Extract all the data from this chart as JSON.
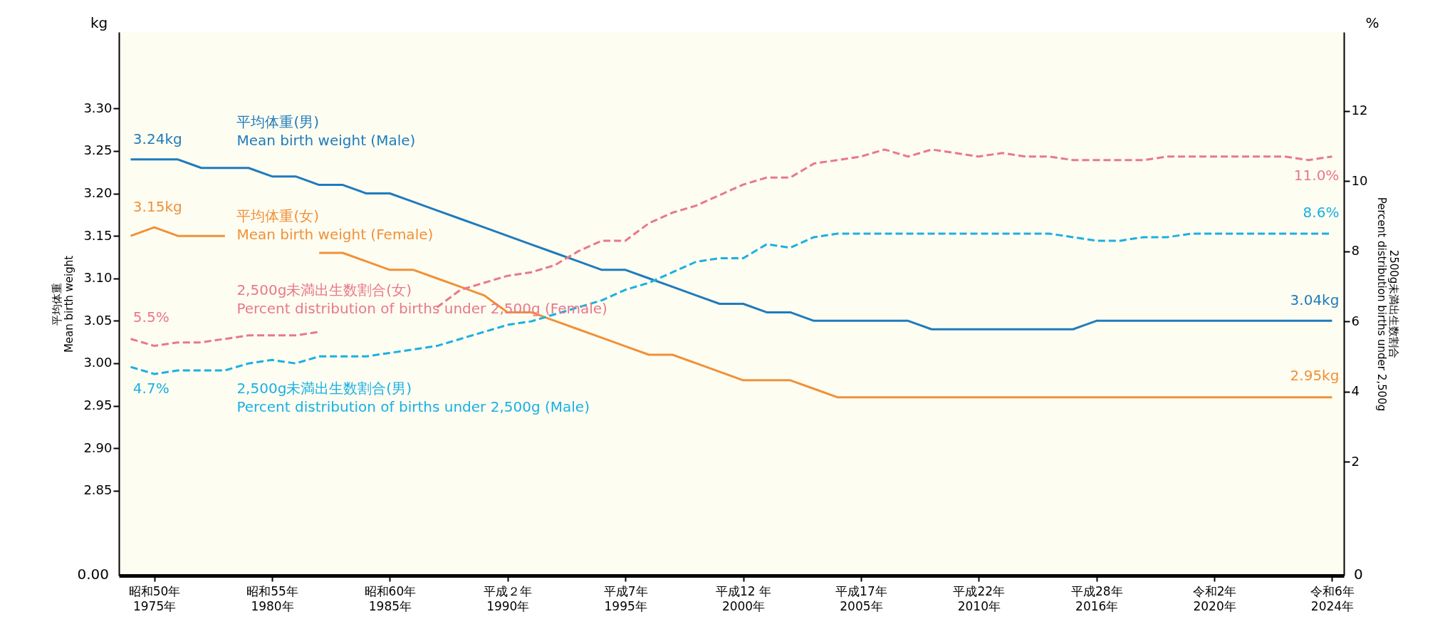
{
  "chart_data": {
    "type": "line",
    "categories": [
      null,
      "昭和50年\n1975年",
      null,
      null,
      null,
      null,
      "昭和55年\n1980年",
      null,
      null,
      null,
      null,
      "昭和60年\n1985年",
      null,
      null,
      null,
      null,
      "平成２年\n1990年",
      null,
      null,
      null,
      null,
      "平成7年\n1995年",
      null,
      null,
      null,
      null,
      "平成12 年\n2000年",
      null,
      null,
      null,
      null,
      "平成17年\n2005年",
      null,
      null,
      null,
      null,
      "平成22年\n2010年",
      null,
      null,
      null,
      null,
      "平成28年\n2016年",
      null,
      null,
      null,
      null,
      "令和2年\n2020年",
      null,
      null,
      null,
      null,
      "令和6年\n2024年"
    ],
    "ylabel": "平均体重\nMean birth weight",
    "y2label": "2500g未満出生数割合\nPercent distribution births under 2,500g",
    "ylim": [
      2.75,
      3.39
    ],
    "yticks": [
      2.85,
      {
        "value": 2.9,
        "label": "2.90"
      },
      2.95,
      {
        "value": 3.0,
        "label": "3.00"
      },
      3.05,
      {
        "value": 3.1,
        "label": "3.10"
      },
      3.15,
      {
        "value": 3.2,
        "label": "3.20"
      },
      3.25,
      {
        "value": 3.3,
        "label": "3.30"
      }
    ],
    "y2lim": [
      -1.25,
      14.25
    ],
    "y2ticks": [
      2,
      4,
      6,
      8,
      10,
      12
    ],
    "grid": false,
    "marker": "none",
    "series": [
      {
        "name": "平均体重(男)\nMean birth weight (Male)",
        "color": "#1f7bbd",
        "line_style": "solid",
        "values": [
          3.24,
          3.24,
          3.24,
          3.23,
          3.23,
          3.23,
          3.22,
          3.22,
          3.21,
          3.21,
          3.2,
          3.2,
          3.19,
          3.18,
          3.17,
          3.16,
          3.15,
          3.14,
          3.13,
          3.12,
          3.11,
          3.11,
          3.1,
          3.09,
          3.08,
          3.07,
          3.07,
          3.06,
          3.06,
          3.05,
          3.05,
          3.05,
          3.05,
          3.05,
          3.04,
          3.04,
          3.04,
          3.04,
          3.04,
          3.04,
          3.04,
          3.05,
          3.05,
          3.05,
          3.05,
          3.05,
          3.05,
          3.05,
          3.05,
          3.05,
          3.05,
          3.05
        ]
      },
      {
        "name": "平均体重(女)\nMean birth weight (Female)",
        "color": "#f0913a",
        "line_style": "solid",
        "values": [
          3.15,
          3.16,
          3.15,
          3.15,
          3.15,
          null,
          null,
          null,
          3.13,
          3.13,
          3.12,
          3.11,
          3.11,
          3.1,
          3.09,
          3.08,
          3.06,
          3.06,
          3.05,
          3.04,
          3.03,
          3.02,
          3.01,
          3.01,
          3.0,
          2.99,
          2.98,
          2.98,
          2.98,
          2.97,
          2.96,
          2.96,
          2.96,
          2.96,
          2.96,
          2.96,
          2.96,
          2.96,
          2.96,
          2.96,
          2.96,
          2.96,
          2.96,
          2.96,
          2.96,
          2.96,
          2.96,
          2.96,
          2.96,
          2.96,
          2.96,
          2.96
        ]
      },
      {
        "name": "2,500g未満出生数割合(女)\nPercent distribution of births under 2,500g (Female)",
        "color": "#e8798a",
        "line_style": "dashed",
        "axis": "y2",
        "values": [
          5.5,
          5.3,
          5.4,
          5.4,
          5.5,
          5.6,
          5.6,
          5.6,
          5.7,
          null,
          null,
          null,
          null,
          6.4,
          6.9,
          7.1,
          7.3,
          7.4,
          7.6,
          8.0,
          8.3,
          8.3,
          8.8,
          9.1,
          9.3,
          9.6,
          9.9,
          10.1,
          10.1,
          10.5,
          10.6,
          10.7,
          10.9,
          10.7,
          10.9,
          10.8,
          10.7,
          10.8,
          10.7,
          10.7,
          10.6,
          10.6,
          10.6,
          10.6,
          10.7,
          10.7,
          10.7,
          10.7,
          10.7,
          10.7,
          10.6,
          10.7
        ]
      },
      {
        "name": "2,500g未満出生数割合(男)\nPercent distribution of births under 2,500g (Male)",
        "color": "#1ab0e4",
        "line_style": "dashed",
        "axis": "y2",
        "values": [
          4.7,
          4.5,
          4.6,
          4.6,
          4.6,
          4.8,
          4.9,
          4.8,
          5.0,
          5.0,
          5.0,
          5.1,
          5.2,
          5.3,
          5.5,
          5.7,
          5.9,
          6.0,
          6.2,
          6.4,
          6.6,
          6.9,
          7.1,
          7.4,
          7.7,
          7.8,
          7.8,
          8.2,
          8.1,
          8.4,
          8.5,
          8.5,
          8.5,
          8.5,
          8.5,
          8.5,
          8.5,
          8.5,
          8.5,
          8.5,
          8.4,
          8.3,
          8.3,
          8.4,
          8.4,
          8.5,
          8.5,
          8.5,
          8.5,
          8.5,
          8.5,
          8.5
        ]
      }
    ],
    "annotations": [
      "kg",
      "%",
      "0.00",
      "0",
      "3.24kg",
      "3.15kg",
      "5.5%",
      "4.7%",
      "11.0%",
      "8.6%",
      "3.04kg",
      "2.95kg"
    ]
  }
}
